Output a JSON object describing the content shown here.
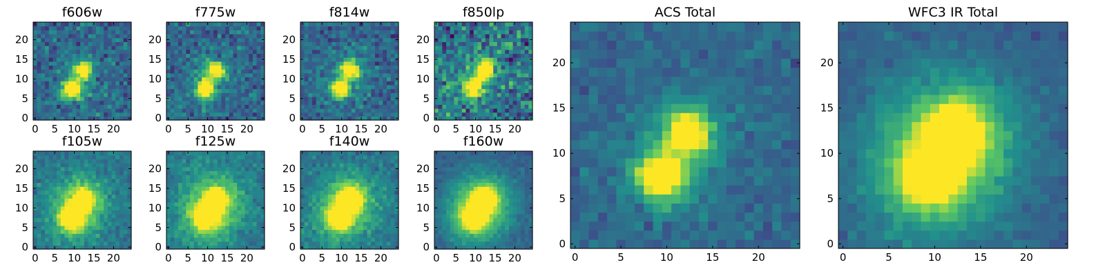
{
  "figure": {
    "colormap": [
      "#440154",
      "#3b528b",
      "#21918c",
      "#5ec962",
      "#fde725"
    ],
    "frame_color": "#000000"
  },
  "chart_data": [
    {
      "type": "heatmap",
      "title": "f606w",
      "xticks": [
        "0",
        "5",
        "10",
        "15",
        "20"
      ],
      "yticks": [
        "0",
        "5",
        "10",
        "15",
        "20"
      ],
      "xlim": [
        0,
        24
      ],
      "ylim": [
        0,
        24
      ],
      "sources": [
        {
          "x": 9.5,
          "y": 7.5,
          "amp": 1.0,
          "sigma": 1.6
        },
        {
          "x": 12.3,
          "y": 12.3,
          "amp": 0.85,
          "sigma": 1.4
        }
      ],
      "halo": {
        "amp": 0.12,
        "sigma": 3.5
      },
      "background": 0.34,
      "noise": 0.13
    },
    {
      "type": "heatmap",
      "title": "f775w",
      "xticks": [
        "0",
        "5",
        "10",
        "15",
        "20"
      ],
      "yticks": [
        "0",
        "5",
        "10",
        "15",
        "20"
      ],
      "xlim": [
        0,
        24
      ],
      "ylim": [
        0,
        24
      ],
      "sources": [
        {
          "x": 9.5,
          "y": 7.5,
          "amp": 1.0,
          "sigma": 1.5
        },
        {
          "x": 12.3,
          "y": 12.3,
          "amp": 0.9,
          "sigma": 1.4
        }
      ],
      "halo": {
        "amp": 0.12,
        "sigma": 3.5
      },
      "background": 0.33,
      "noise": 0.13
    },
    {
      "type": "heatmap",
      "title": "f814w",
      "xticks": [
        "0",
        "5",
        "10",
        "15",
        "20"
      ],
      "yticks": [
        "0",
        "5",
        "10",
        "15",
        "20"
      ],
      "xlim": [
        0,
        24
      ],
      "ylim": [
        0,
        24
      ],
      "sources": [
        {
          "x": 9.5,
          "y": 7.5,
          "amp": 0.95,
          "sigma": 1.5
        },
        {
          "x": 12.3,
          "y": 12.3,
          "amp": 1.0,
          "sigma": 1.5
        }
      ],
      "halo": {
        "amp": 0.12,
        "sigma": 3.5
      },
      "background": 0.33,
      "noise": 0.12
    },
    {
      "type": "heatmap",
      "title": "f850lp",
      "xticks": [
        "0",
        "5",
        "10",
        "15",
        "20"
      ],
      "yticks": [
        "0",
        "5",
        "10",
        "15",
        "20"
      ],
      "xlim": [
        0,
        24
      ],
      "ylim": [
        0,
        24
      ],
      "sources": [
        {
          "x": 9.5,
          "y": 7.5,
          "amp": 0.8,
          "sigma": 1.5
        },
        {
          "x": 12.3,
          "y": 12.3,
          "amp": 1.0,
          "sigma": 1.6
        }
      ],
      "halo": {
        "amp": 0.12,
        "sigma": 3.5
      },
      "background": 0.4,
      "noise": 0.2
    },
    {
      "type": "heatmap",
      "title": "f105w",
      "xticks": [
        "0",
        "5",
        "10",
        "15",
        "20"
      ],
      "yticks": [
        "0",
        "5",
        "10",
        "15",
        "20"
      ],
      "xlim": [
        0,
        24
      ],
      "ylim": [
        0,
        24
      ],
      "sources": [
        {
          "x": 9.5,
          "y": 7.5,
          "amp": 1.0,
          "sigma": 1.8
        },
        {
          "x": 12.3,
          "y": 12.3,
          "amp": 0.8,
          "sigma": 1.7
        }
      ],
      "halo": {
        "amp": 0.3,
        "sigma": 4.8
      },
      "background": 0.38,
      "noise": 0.08
    },
    {
      "type": "heatmap",
      "title": "f125w",
      "xticks": [
        "0",
        "5",
        "10",
        "15",
        "20"
      ],
      "yticks": [
        "0",
        "5",
        "10",
        "15",
        "20"
      ],
      "xlim": [
        0,
        24
      ],
      "ylim": [
        0,
        24
      ],
      "sources": [
        {
          "x": 9.5,
          "y": 7.5,
          "amp": 0.95,
          "sigma": 1.8
        },
        {
          "x": 12.3,
          "y": 12.3,
          "amp": 0.9,
          "sigma": 1.7
        }
      ],
      "halo": {
        "amp": 0.32,
        "sigma": 5.0
      },
      "background": 0.4,
      "noise": 0.08
    },
    {
      "type": "heatmap",
      "title": "f140w",
      "xticks": [
        "0",
        "5",
        "10",
        "15",
        "20"
      ],
      "yticks": [
        "0",
        "5",
        "10",
        "15",
        "20"
      ],
      "xlim": [
        0,
        24
      ],
      "ylim": [
        0,
        24
      ],
      "sources": [
        {
          "x": 9.5,
          "y": 7.5,
          "amp": 0.85,
          "sigma": 1.8
        },
        {
          "x": 12.3,
          "y": 12.3,
          "amp": 1.0,
          "sigma": 1.8
        }
      ],
      "halo": {
        "amp": 0.32,
        "sigma": 5.0
      },
      "background": 0.38,
      "noise": 0.08
    },
    {
      "type": "heatmap",
      "title": "f160w",
      "xticks": [
        "0",
        "5",
        "10",
        "15",
        "20"
      ],
      "yticks": [
        "0",
        "5",
        "10",
        "15",
        "20"
      ],
      "xlim": [
        0,
        24
      ],
      "ylim": [
        0,
        24
      ],
      "sources": [
        {
          "x": 9.5,
          "y": 7.5,
          "amp": 0.9,
          "sigma": 1.8
        },
        {
          "x": 12.3,
          "y": 12.3,
          "amp": 0.95,
          "sigma": 1.8
        }
      ],
      "halo": {
        "amp": 0.38,
        "sigma": 5.2
      },
      "background": 0.3,
      "noise": 0.05
    },
    {
      "type": "heatmap",
      "title": "ACS Total",
      "xticks": [
        "0",
        "5",
        "10",
        "15",
        "20"
      ],
      "yticks": [
        "0",
        "5",
        "10",
        "15",
        "20"
      ],
      "xlim": [
        0,
        24
      ],
      "ylim": [
        0,
        24
      ],
      "sources": [
        {
          "x": 9.5,
          "y": 7.5,
          "amp": 1.0,
          "sigma": 1.6
        },
        {
          "x": 12.3,
          "y": 12.3,
          "amp": 0.95,
          "sigma": 1.5
        }
      ],
      "halo": {
        "amp": 0.15,
        "sigma": 3.8
      },
      "background": 0.33,
      "noise": 0.07
    },
    {
      "type": "heatmap",
      "title": "WFC3 IR Total",
      "xticks": [
        "0",
        "5",
        "10",
        "15",
        "20"
      ],
      "yticks": [
        "0",
        "5",
        "10",
        "15",
        "20"
      ],
      "xlim": [
        0,
        24
      ],
      "ylim": [
        0,
        24
      ],
      "sources": [
        {
          "x": 9.5,
          "y": 7.5,
          "amp": 0.95,
          "sigma": 1.9
        },
        {
          "x": 12.3,
          "y": 12.3,
          "amp": 1.0,
          "sigma": 1.9
        }
      ],
      "halo": {
        "amp": 0.35,
        "sigma": 5.2
      },
      "background": 0.3,
      "noise": 0.05
    }
  ]
}
